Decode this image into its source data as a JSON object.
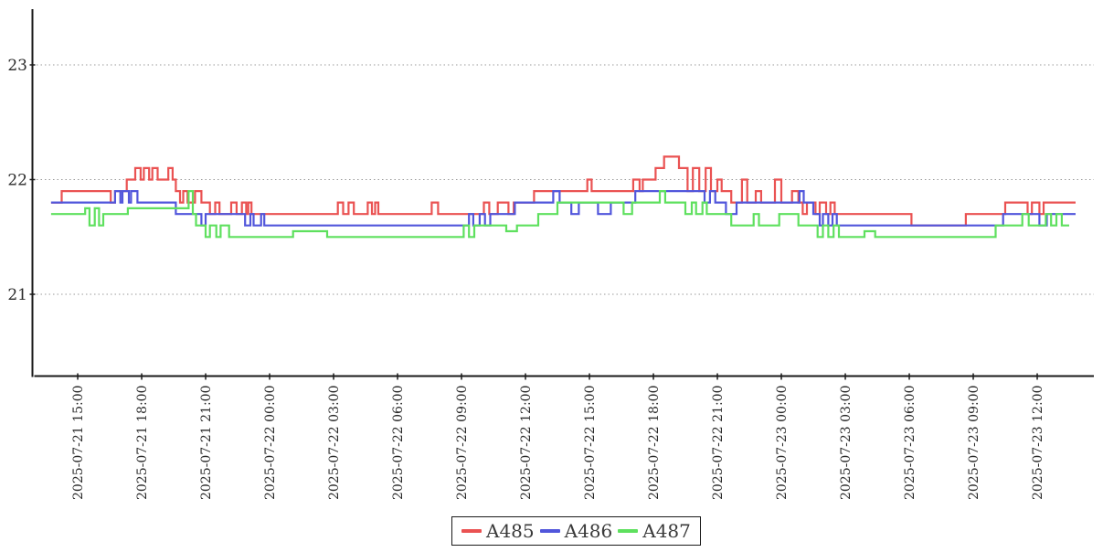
{
  "chart_data": {
    "type": "line",
    "step_interpolation": true,
    "title": "",
    "xlabel": "",
    "ylabel": "",
    "background": "#ffffff",
    "grid": {
      "shown": true,
      "style": "dotted",
      "color": "#999999",
      "values": [
        21,
        22,
        23
      ]
    },
    "y_axis": {
      "ticks": [
        "23",
        "22",
        "21"
      ],
      "tick_values": [
        23,
        22,
        21
      ],
      "range": [
        20.3,
        23.5
      ]
    },
    "x_axis": {
      "time_origin": "2025-07-21 14:00",
      "hours_per_tick": 3,
      "range_hours": [
        -1.1,
        48.7
      ],
      "ticks": [
        {
          "t": 1,
          "label": "2025-07-21 15:00"
        },
        {
          "t": 4,
          "label": "2025-07-21 18:00"
        },
        {
          "t": 7,
          "label": "2025-07-21 21:00"
        },
        {
          "t": 10,
          "label": "2025-07-22 00:00"
        },
        {
          "t": 13,
          "label": "2025-07-22 03:00"
        },
        {
          "t": 16,
          "label": "2025-07-22 06:00"
        },
        {
          "t": 19,
          "label": "2025-07-22 09:00"
        },
        {
          "t": 22,
          "label": "2025-07-22 12:00"
        },
        {
          "t": 25,
          "label": "2025-07-22 15:00"
        },
        {
          "t": 28,
          "label": "2025-07-22 18:00"
        },
        {
          "t": 31,
          "label": "2025-07-22 21:00"
        },
        {
          "t": 34,
          "label": "2025-07-23 00:00"
        },
        {
          "t": 37,
          "label": "2025-07-23 03:00"
        },
        {
          "t": 40,
          "label": "2025-07-23 06:00"
        },
        {
          "t": 43,
          "label": "2025-07-23 09:00"
        },
        {
          "t": 46,
          "label": "2025-07-23 12:00"
        }
      ]
    },
    "legend": {
      "position": "bottom-center",
      "border": true
    },
    "series": [
      {
        "name": "A485",
        "color": "#ea5252",
        "end_t": 47.8,
        "points": [
          [
            -0.25,
            21.8
          ],
          [
            0.25,
            21.9
          ],
          [
            2.55,
            21.8
          ],
          [
            2.75,
            21.9
          ],
          [
            3.3,
            22.0
          ],
          [
            3.7,
            22.1
          ],
          [
            3.95,
            22.0
          ],
          [
            4.1,
            22.1
          ],
          [
            4.35,
            22.0
          ],
          [
            4.5,
            22.1
          ],
          [
            4.75,
            22.0
          ],
          [
            5.25,
            22.1
          ],
          [
            5.45,
            22.0
          ],
          [
            5.6,
            21.9
          ],
          [
            5.8,
            21.8
          ],
          [
            5.95,
            21.9
          ],
          [
            6.15,
            21.8
          ],
          [
            6.5,
            21.9
          ],
          [
            6.8,
            21.8
          ],
          [
            7.2,
            21.7
          ],
          [
            7.45,
            21.8
          ],
          [
            7.65,
            21.7
          ],
          [
            8.2,
            21.8
          ],
          [
            8.45,
            21.7
          ],
          [
            8.7,
            21.8
          ],
          [
            8.9,
            21.7
          ],
          [
            9.0,
            21.8
          ],
          [
            9.15,
            21.7
          ],
          [
            13.2,
            21.8
          ],
          [
            13.45,
            21.7
          ],
          [
            13.7,
            21.8
          ],
          [
            13.95,
            21.7
          ],
          [
            14.6,
            21.8
          ],
          [
            14.8,
            21.7
          ],
          [
            14.95,
            21.8
          ],
          [
            15.1,
            21.7
          ],
          [
            17.6,
            21.8
          ],
          [
            17.9,
            21.7
          ],
          [
            20.05,
            21.8
          ],
          [
            20.3,
            21.7
          ],
          [
            20.7,
            21.8
          ],
          [
            21.2,
            21.7
          ],
          [
            21.45,
            21.8
          ],
          [
            22.4,
            21.9
          ],
          [
            24.9,
            22.0
          ],
          [
            25.1,
            21.9
          ],
          [
            27.05,
            22.0
          ],
          [
            27.35,
            21.9
          ],
          [
            27.5,
            22.0
          ],
          [
            28.1,
            22.1
          ],
          [
            28.5,
            22.2
          ],
          [
            29.2,
            22.1
          ],
          [
            29.6,
            21.9
          ],
          [
            29.85,
            22.1
          ],
          [
            30.15,
            21.9
          ],
          [
            30.45,
            22.1
          ],
          [
            30.7,
            21.9
          ],
          [
            31.0,
            22.0
          ],
          [
            31.2,
            21.9
          ],
          [
            31.65,
            21.8
          ],
          [
            32.15,
            22.0
          ],
          [
            32.4,
            21.8
          ],
          [
            32.8,
            21.9
          ],
          [
            33.05,
            21.8
          ],
          [
            33.7,
            22.0
          ],
          [
            34.0,
            21.8
          ],
          [
            34.5,
            21.9
          ],
          [
            34.8,
            21.8
          ],
          [
            35.0,
            21.7
          ],
          [
            35.2,
            21.8
          ],
          [
            35.6,
            21.7
          ],
          [
            35.8,
            21.8
          ],
          [
            36.1,
            21.7
          ],
          [
            36.3,
            21.8
          ],
          [
            36.5,
            21.7
          ],
          [
            40.1,
            21.6
          ],
          [
            42.65,
            21.7
          ],
          [
            44.5,
            21.8
          ],
          [
            45.55,
            21.7
          ],
          [
            45.75,
            21.8
          ],
          [
            46.1,
            21.7
          ],
          [
            46.3,
            21.8
          ]
        ]
      },
      {
        "name": "A486",
        "color": "#5156db",
        "end_t": 47.8,
        "points": [
          [
            -0.25,
            21.8
          ],
          [
            2.75,
            21.9
          ],
          [
            3.0,
            21.8
          ],
          [
            3.1,
            21.9
          ],
          [
            3.4,
            21.8
          ],
          [
            3.5,
            21.9
          ],
          [
            3.8,
            21.8
          ],
          [
            5.6,
            21.7
          ],
          [
            6.8,
            21.6
          ],
          [
            7.0,
            21.7
          ],
          [
            8.85,
            21.6
          ],
          [
            9.1,
            21.7
          ],
          [
            9.25,
            21.6
          ],
          [
            9.6,
            21.7
          ],
          [
            9.75,
            21.6
          ],
          [
            19.35,
            21.7
          ],
          [
            19.55,
            21.6
          ],
          [
            19.85,
            21.7
          ],
          [
            20.1,
            21.6
          ],
          [
            20.35,
            21.7
          ],
          [
            21.5,
            21.8
          ],
          [
            23.3,
            21.9
          ],
          [
            23.6,
            21.8
          ],
          [
            24.15,
            21.7
          ],
          [
            24.5,
            21.8
          ],
          [
            25.4,
            21.7
          ],
          [
            26.0,
            21.8
          ],
          [
            27.15,
            21.9
          ],
          [
            30.4,
            21.8
          ],
          [
            30.65,
            21.9
          ],
          [
            30.9,
            21.8
          ],
          [
            31.4,
            21.7
          ],
          [
            31.9,
            21.8
          ],
          [
            34.85,
            21.9
          ],
          [
            35.05,
            21.8
          ],
          [
            35.5,
            21.7
          ],
          [
            35.8,
            21.6
          ],
          [
            35.95,
            21.7
          ],
          [
            36.2,
            21.6
          ],
          [
            36.4,
            21.7
          ],
          [
            36.6,
            21.6
          ],
          [
            44.4,
            21.7
          ],
          [
            46.1,
            21.6
          ],
          [
            46.45,
            21.7
          ]
        ]
      },
      {
        "name": "A487",
        "color": "#5ee05e",
        "end_t": 47.5,
        "points": [
          [
            -0.25,
            21.7
          ],
          [
            1.35,
            21.75
          ],
          [
            1.55,
            21.6
          ],
          [
            1.8,
            21.75
          ],
          [
            2.0,
            21.6
          ],
          [
            2.2,
            21.7
          ],
          [
            3.35,
            21.75
          ],
          [
            6.2,
            21.9
          ],
          [
            6.4,
            21.7
          ],
          [
            6.55,
            21.6
          ],
          [
            7.0,
            21.5
          ],
          [
            7.2,
            21.6
          ],
          [
            7.5,
            21.5
          ],
          [
            7.7,
            21.6
          ],
          [
            8.1,
            21.5
          ],
          [
            11.1,
            21.55
          ],
          [
            12.7,
            21.5
          ],
          [
            19.1,
            21.6
          ],
          [
            19.35,
            21.5
          ],
          [
            19.6,
            21.6
          ],
          [
            21.1,
            21.55
          ],
          [
            21.6,
            21.6
          ],
          [
            22.6,
            21.7
          ],
          [
            23.5,
            21.8
          ],
          [
            26.6,
            21.7
          ],
          [
            27.0,
            21.8
          ],
          [
            28.3,
            21.9
          ],
          [
            28.55,
            21.8
          ],
          [
            29.5,
            21.7
          ],
          [
            29.8,
            21.8
          ],
          [
            30.0,
            21.7
          ],
          [
            30.3,
            21.8
          ],
          [
            30.5,
            21.7
          ],
          [
            31.65,
            21.6
          ],
          [
            32.7,
            21.7
          ],
          [
            32.95,
            21.6
          ],
          [
            33.9,
            21.7
          ],
          [
            34.8,
            21.6
          ],
          [
            35.7,
            21.5
          ],
          [
            35.95,
            21.6
          ],
          [
            36.2,
            21.5
          ],
          [
            36.45,
            21.6
          ],
          [
            36.7,
            21.5
          ],
          [
            37.9,
            21.55
          ],
          [
            38.4,
            21.5
          ],
          [
            44.05,
            21.6
          ],
          [
            45.3,
            21.7
          ],
          [
            45.6,
            21.6
          ],
          [
            46.4,
            21.7
          ],
          [
            46.65,
            21.6
          ],
          [
            46.9,
            21.7
          ],
          [
            47.15,
            21.6
          ]
        ]
      }
    ]
  }
}
